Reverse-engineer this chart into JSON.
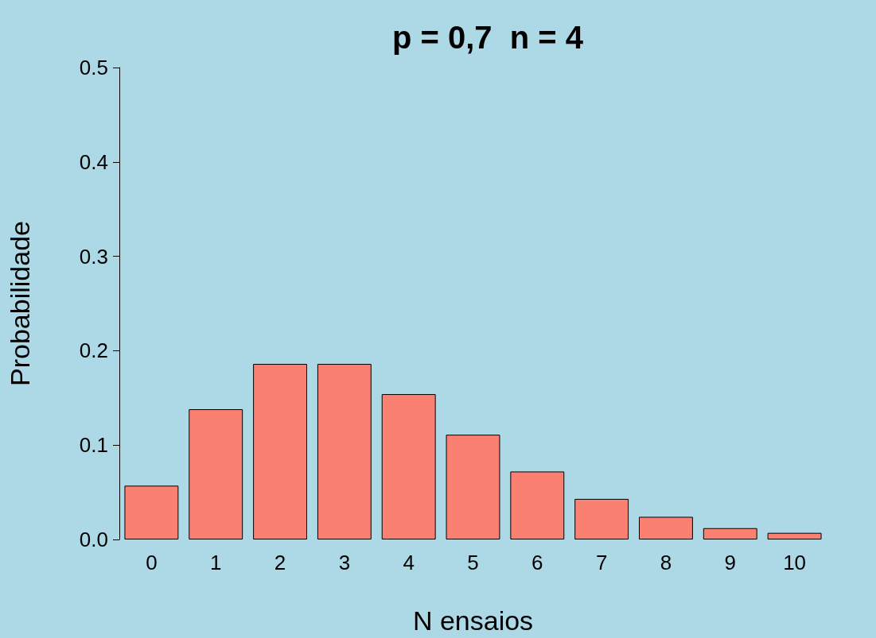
{
  "chart_data": {
    "type": "bar",
    "title": "p = 0,7  n = 4",
    "xlabel": "N ensaios",
    "ylabel": "Probabilidade",
    "categories": [
      "0",
      "1",
      "2",
      "3",
      "4",
      "5",
      "6",
      "7",
      "8",
      "9",
      "10"
    ],
    "values": [
      0.057,
      0.138,
      0.186,
      0.186,
      0.154,
      0.111,
      0.072,
      0.043,
      0.024,
      0.012,
      0.007
    ],
    "color": "#fa8072",
    "ylim": [
      0,
      0.5
    ],
    "yticks": [
      {
        "value": 0,
        "label": "0.0"
      },
      {
        "value": 0.1,
        "label": "0.1"
      },
      {
        "value": 0.2,
        "label": "0.2"
      },
      {
        "value": 0.3,
        "label": "0.3"
      },
      {
        "value": 0.4,
        "label": "0.4"
      },
      {
        "value": 0.5,
        "label": "0.5"
      }
    ],
    "grid": false
  }
}
